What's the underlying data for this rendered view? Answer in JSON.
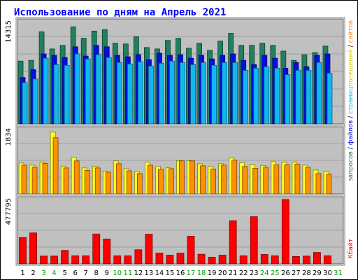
{
  "chart_data": {
    "type": "bar",
    "title": "Использование по дням на Апрель 2021",
    "categories": [
      "1",
      "2",
      "3",
      "4",
      "5",
      "6",
      "7",
      "8",
      "9",
      "10",
      "11",
      "12",
      "13",
      "14",
      "15",
      "16",
      "17",
      "18",
      "19",
      "20",
      "21",
      "22",
      "23",
      "24",
      "25",
      "26",
      "27",
      "28",
      "29",
      "30",
      "31"
    ],
    "weekend_days": [
      "3",
      "4",
      "10",
      "11",
      "17",
      "18",
      "24",
      "25",
      "31"
    ],
    "panels": [
      {
        "name": "requests",
        "scale_max_label": "14315",
        "ymax": 14315,
        "series": [
          {
            "name": "запросов",
            "color": "#208060",
            "values": [
              8800,
              8900,
              12900,
              10500,
              11000,
              13600,
              12000,
              13000,
              13200,
              11300,
              11200,
              12200,
              10700,
              10500,
              11700,
              12000,
              10600,
              11300,
              10300,
              11600,
              12700,
              11000,
              11000,
              11300,
              11000,
              10200,
              8900,
              9700,
              10000,
              10900,
              0
            ]
          },
          {
            "name": "файлов",
            "color": "#0010e0",
            "values": [
              6500,
              7600,
              9800,
              9600,
              9300,
              10800,
              9500,
              11000,
              10800,
              9600,
              9400,
              9700,
              9000,
              9900,
              9600,
              9700,
              9200,
              9600,
              9100,
              9600,
              9800,
              8900,
              8300,
              9600,
              9200,
              7800,
              8600,
              8000,
              9600,
              9800,
              0
            ]
          },
          {
            "name": "страниц",
            "color": "#10b8f0",
            "values": [
              5800,
              6300,
              9200,
              8300,
              8200,
              9800,
              9100,
              9700,
              9300,
              8600,
              8400,
              8700,
              8100,
              8500,
              8800,
              8600,
              8300,
              8600,
              8200,
              8600,
              8600,
              7500,
              7800,
              8000,
              7800,
              6900,
              7500,
              7500,
              8600,
              7100,
              0
            ]
          }
        ]
      },
      {
        "name": "visits",
        "scale_max_label": "1834",
        "ymax": 1834,
        "series": [
          {
            "name": "посещений",
            "color": "#ffff20",
            "values": [
              880,
              820,
              900,
              1760,
              790,
              1040,
              740,
              790,
              650,
              940,
              720,
              630,
              900,
              780,
              750,
              950,
              950,
              860,
              780,
              860,
              1030,
              890,
              830,
              810,
              920,
              900,
              900,
              820,
              680,
              630,
              0
            ]
          },
          {
            "name": "сайтов",
            "color": "#ff9000",
            "values": [
              820,
              760,
              870,
              1600,
              740,
              940,
              670,
              740,
              620,
              860,
              660,
              580,
              820,
              700,
              720,
              940,
              940,
              800,
              710,
              820,
              960,
              780,
              730,
              760,
              830,
              830,
              850,
              760,
              580,
              560,
              0
            ]
          }
        ]
      },
      {
        "name": "traffic",
        "scale_max_label": "477795",
        "ymax": 477795,
        "series": [
          {
            "name": "Кбайт",
            "color": "#ff0000",
            "values": [
              195000,
              230000,
              58000,
              58000,
              100000,
              60000,
              60000,
              222000,
              185000,
              60000,
              60000,
              105000,
              220000,
              80000,
              65000,
              80000,
              205000,
              72000,
              50000,
              65000,
              320000,
              60000,
              350000,
              70000,
              60000,
              477795,
              55000,
              58000,
              85000,
              60000,
              0
            ]
          }
        ]
      }
    ],
    "right_axis_label": {
      "top_parts": [
        {
          "text": "запросов",
          "color": "#208060"
        },
        {
          "text": " / ",
          "color": "#000000"
        },
        {
          "text": "файлов",
          "color": "#0010e0"
        },
        {
          "text": " / ",
          "color": "#000000"
        },
        {
          "text": "страниц",
          "color": "#10b8f0"
        },
        {
          "text": "посещений",
          "color": "#e6c800"
        },
        {
          "text": " / ",
          "color": "#000000"
        },
        {
          "text": "сайтов",
          "color": "#ff9000"
        }
      ],
      "bottom_parts": [
        {
          "text": "Кбайт",
          "color": "#ff0000"
        }
      ]
    },
    "colors": {
      "plot_background": "#c0c0c0",
      "gridline": "#a0a0a0",
      "title": "#0000ff",
      "weekday_label": "#000000",
      "weekend_label": "#00a000"
    }
  }
}
